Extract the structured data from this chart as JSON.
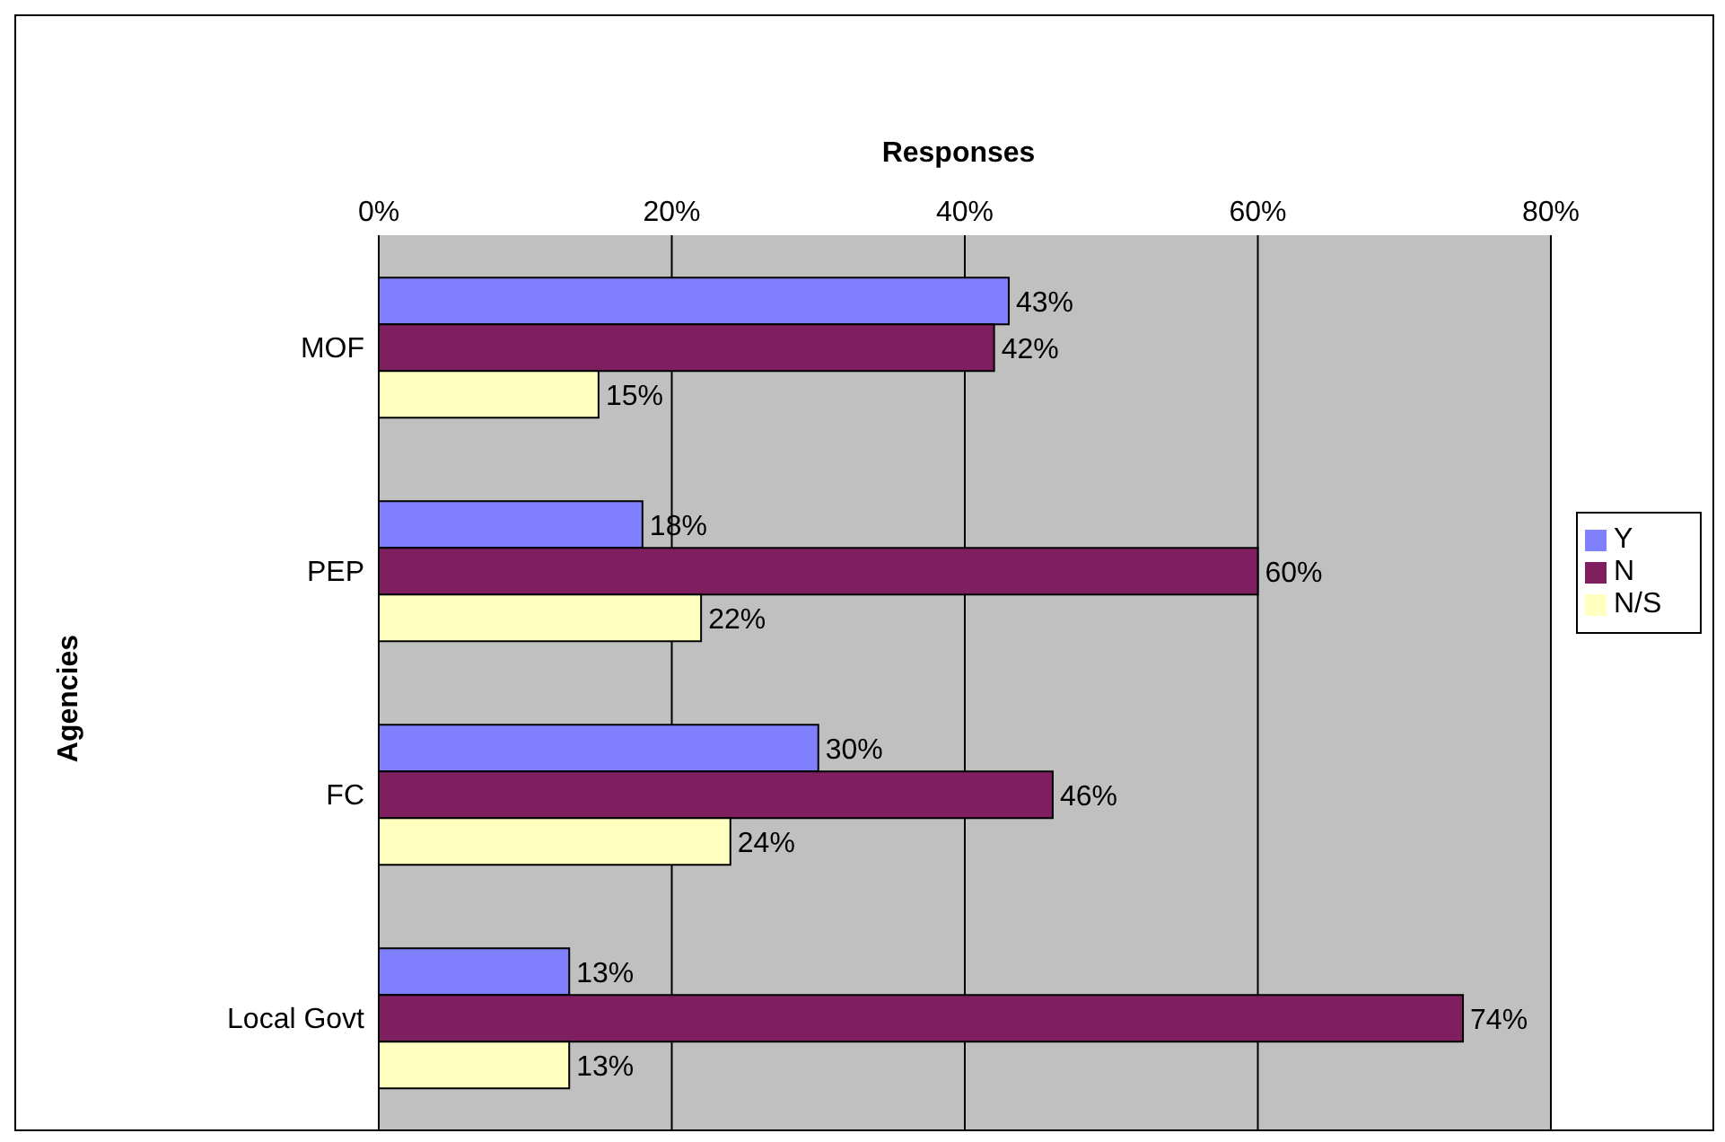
{
  "chart_data": {
    "type": "bar",
    "orientation": "horizontal",
    "xlabel": "Responses",
    "ylabel": "Agencies",
    "categories": [
      "MOF",
      "PEP",
      "FC",
      "Local Govt"
    ],
    "series": [
      {
        "name": "Y",
        "color": "#8080ff",
        "values": [
          43,
          18,
          30,
          13
        ],
        "value_labels": [
          "43%",
          "18%",
          "30%",
          "13%"
        ]
      },
      {
        "name": "N",
        "color": "#7f1f5f",
        "values": [
          42,
          60,
          46,
          74
        ],
        "value_labels": [
          "42%",
          "60%",
          "46%",
          "74%"
        ]
      },
      {
        "name": "N/S",
        "color": "#ffffc0",
        "values": [
          15,
          22,
          24,
          13
        ],
        "value_labels": [
          "15%",
          "22%",
          "24%",
          "13%"
        ]
      }
    ],
    "xlim": [
      0,
      80
    ],
    "xticks": [
      {
        "value": 0,
        "label": "0%"
      },
      {
        "value": 20,
        "label": "20%"
      },
      {
        "value": 40,
        "label": "40%"
      },
      {
        "value": 60,
        "label": "60%"
      },
      {
        "value": 80,
        "label": "80%"
      }
    ],
    "grid": "x",
    "legend": "right"
  }
}
